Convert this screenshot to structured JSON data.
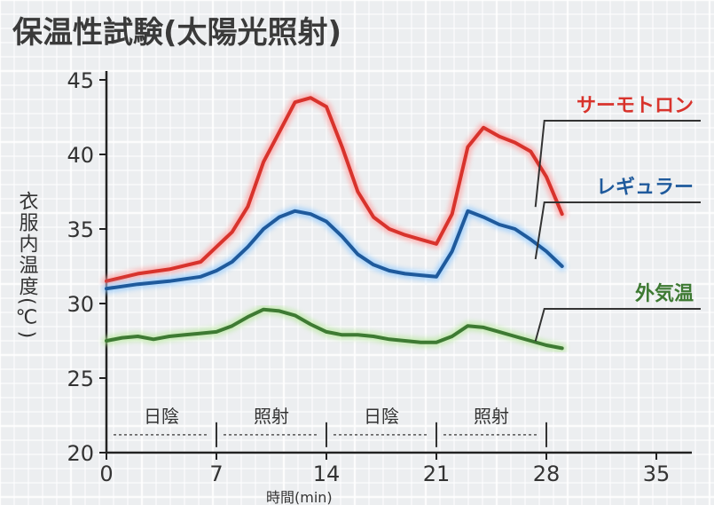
{
  "chart_data": {
    "type": "line",
    "title": "保温性試験(太陽光照射)",
    "ylabel": "衣服内温度(℃)",
    "xlabel": "時間(min)",
    "xlim": [
      0,
      35
    ],
    "ylim": [
      20,
      45
    ],
    "xticks": [
      0,
      7,
      14,
      21,
      28,
      35
    ],
    "yticks": [
      20,
      25,
      30,
      35,
      40,
      45
    ],
    "grid": true,
    "phases": [
      {
        "label": "日陰",
        "start": 0,
        "end": 7
      },
      {
        "label": "照射",
        "start": 7,
        "end": 14
      },
      {
        "label": "日陰",
        "start": 14,
        "end": 21
      },
      {
        "label": "照射",
        "start": 21,
        "end": 28
      }
    ],
    "series": [
      {
        "name": "サーモトロン",
        "color": "#d8332c",
        "glow": "#ff9a9a",
        "x": [
          0,
          2,
          4,
          6,
          7,
          8,
          9,
          10,
          11,
          12,
          13,
          14,
          15,
          16,
          17,
          18,
          19,
          20,
          21,
          22,
          23,
          24,
          25,
          26,
          27,
          28,
          29
        ],
        "y": [
          31.5,
          32.0,
          32.3,
          32.8,
          33.8,
          34.8,
          36.5,
          39.5,
          41.5,
          43.5,
          43.8,
          43.2,
          40.5,
          37.5,
          35.8,
          35.0,
          34.6,
          34.3,
          34.0,
          36.0,
          40.5,
          41.8,
          41.2,
          40.8,
          40.2,
          38.5,
          36.0
        ]
      },
      {
        "name": "レギュラー",
        "color": "#1f5a9c",
        "glow": "#8cc8ff",
        "x": [
          0,
          2,
          4,
          6,
          7,
          8,
          9,
          10,
          11,
          12,
          13,
          14,
          15,
          16,
          17,
          18,
          19,
          20,
          21,
          22,
          23,
          24,
          25,
          26,
          27,
          28,
          29
        ],
        "y": [
          31.0,
          31.3,
          31.5,
          31.8,
          32.2,
          32.8,
          33.8,
          35.0,
          35.8,
          36.2,
          36.0,
          35.5,
          34.5,
          33.3,
          32.6,
          32.2,
          32.0,
          31.9,
          31.8,
          33.5,
          36.2,
          35.8,
          35.3,
          35.0,
          34.3,
          33.5,
          32.5
        ]
      },
      {
        "name": "外気温",
        "color": "#3e7a33",
        "glow": "#b6e89a",
        "x": [
          0,
          1,
          2,
          3,
          4,
          5,
          6,
          7,
          8,
          9,
          10,
          11,
          12,
          13,
          14,
          15,
          16,
          17,
          18,
          19,
          20,
          21,
          22,
          23,
          24,
          25,
          26,
          27,
          28,
          29
        ],
        "y": [
          27.5,
          27.7,
          27.8,
          27.6,
          27.8,
          27.9,
          28.0,
          28.1,
          28.5,
          29.1,
          29.6,
          29.5,
          29.2,
          28.6,
          28.1,
          27.9,
          27.9,
          27.8,
          27.6,
          27.5,
          27.4,
          27.4,
          27.8,
          28.5,
          28.4,
          28.1,
          27.8,
          27.5,
          27.2,
          27.0
        ]
      }
    ]
  }
}
